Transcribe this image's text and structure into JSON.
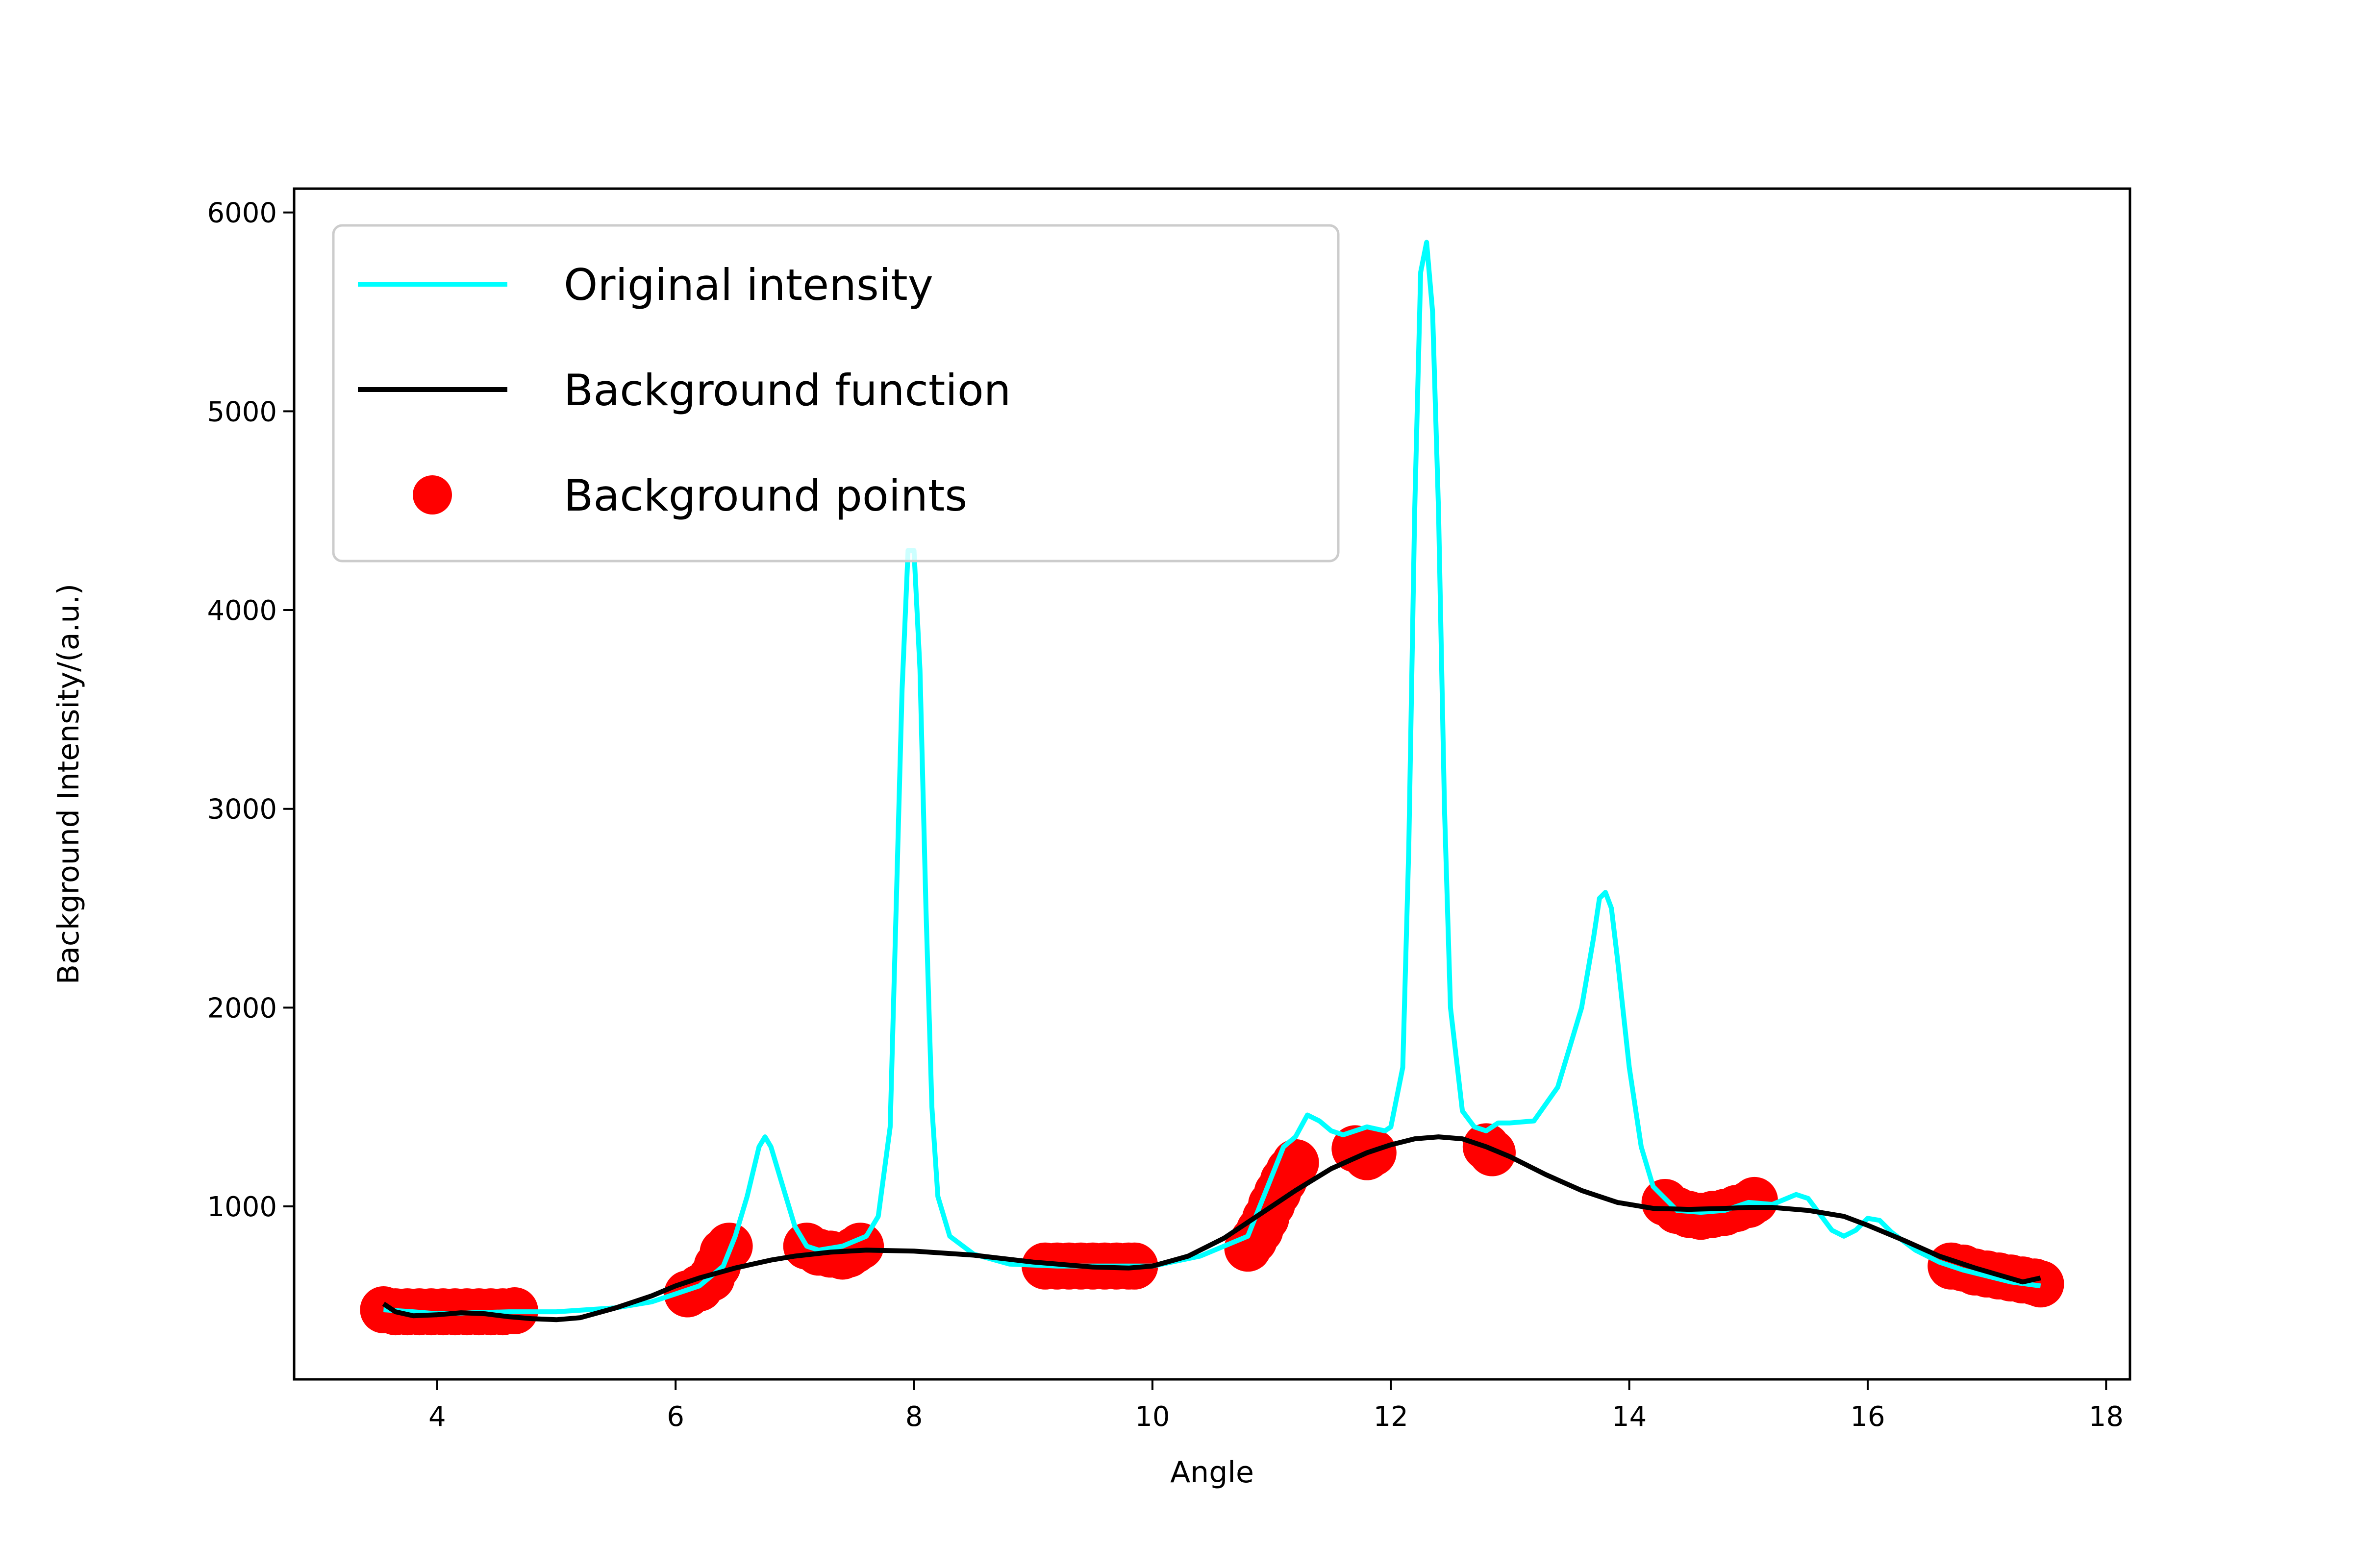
{
  "chart_data": {
    "type": "line",
    "title": "",
    "xlabel": "Angle",
    "ylabel": "Background Intensity/(a.u.)",
    "xlim": [
      2.8,
      18.2
    ],
    "ylim": [
      130,
      6120
    ],
    "xticks": [
      4,
      6,
      8,
      10,
      12,
      14,
      16,
      18
    ],
    "yticks": [
      1000,
      2000,
      3000,
      4000,
      5000,
      6000
    ],
    "grid": false,
    "legend_position": "top-left",
    "colors": {
      "original": "#00ffff",
      "background": "#000000",
      "points": "#ff0000"
    },
    "legend": [
      {
        "label": "Original intensity",
        "kind": "line",
        "color": "#00ffff"
      },
      {
        "label": "Background function",
        "kind": "line",
        "color": "#000000"
      },
      {
        "label": "Background points",
        "kind": "marker",
        "color": "#ff0000"
      }
    ],
    "series": [
      {
        "name": "Original intensity",
        "kind": "line",
        "color": "#00ffff",
        "x": [
          3.55,
          3.8,
          4.0,
          4.3,
          4.6,
          5.0,
          5.5,
          5.8,
          6.0,
          6.2,
          6.4,
          6.5,
          6.6,
          6.7,
          6.75,
          6.8,
          6.9,
          7.0,
          7.1,
          7.2,
          7.4,
          7.6,
          7.7,
          7.8,
          7.85,
          7.9,
          7.95,
          8.0,
          8.05,
          8.1,
          8.15,
          8.2,
          8.3,
          8.5,
          8.8,
          9.2,
          9.6,
          10.0,
          10.4,
          10.8,
          11.0,
          11.1,
          11.2,
          11.3,
          11.4,
          11.5,
          11.6,
          11.8,
          11.95,
          12.0,
          12.1,
          12.15,
          12.2,
          12.25,
          12.3,
          12.35,
          12.4,
          12.45,
          12.5,
          12.6,
          12.7,
          12.8,
          12.9,
          13.0,
          13.2,
          13.4,
          13.6,
          13.7,
          13.75,
          13.8,
          13.85,
          13.9,
          14.0,
          14.1,
          14.2,
          14.4,
          14.6,
          14.8,
          15.0,
          15.2,
          15.4,
          15.5,
          15.6,
          15.7,
          15.8,
          15.9,
          16.0,
          16.1,
          16.2,
          16.4,
          16.6,
          16.8,
          17.0,
          17.2,
          17.45
        ],
        "y": [
          480,
          470,
          460,
          465,
          470,
          470,
          490,
          520,
          560,
          600,
          700,
          850,
          1050,
          1300,
          1350,
          1300,
          1100,
          900,
          800,
          780,
          800,
          850,
          950,
          1400,
          2500,
          3600,
          4300,
          4300,
          3700,
          2500,
          1500,
          1050,
          850,
          760,
          710,
          700,
          700,
          700,
          750,
          850,
          1150,
          1300,
          1350,
          1460,
          1430,
          1380,
          1360,
          1400,
          1380,
          1400,
          1700,
          2800,
          4500,
          5700,
          5850,
          5500,
          4500,
          3000,
          2000,
          1480,
          1400,
          1380,
          1420,
          1420,
          1430,
          1600,
          2000,
          2350,
          2550,
          2580,
          2500,
          2250,
          1700,
          1300,
          1100,
          980,
          970,
          980,
          1020,
          1010,
          1060,
          1040,
          960,
          880,
          850,
          880,
          940,
          930,
          870,
          780,
          720,
          680,
          650,
          620,
          600
        ]
      },
      {
        "name": "Background function",
        "kind": "line",
        "color": "#000000",
        "x": [
          3.55,
          3.65,
          3.8,
          4.0,
          4.2,
          4.4,
          4.6,
          4.8,
          5.0,
          5.2,
          5.5,
          5.8,
          6.0,
          6.2,
          6.5,
          6.8,
          7.0,
          7.3,
          7.6,
          8.0,
          8.5,
          9.0,
          9.5,
          9.8,
          10.0,
          10.3,
          10.6,
          10.9,
          11.2,
          11.5,
          11.8,
          12.0,
          12.2,
          12.4,
          12.6,
          12.8,
          13.0,
          13.3,
          13.6,
          13.9,
          14.2,
          14.5,
          14.8,
          15.0,
          15.2,
          15.5,
          15.8,
          16.0,
          16.3,
          16.6,
          16.9,
          17.1,
          17.3,
          17.45
        ],
        "y": [
          510,
          470,
          450,
          455,
          465,
          460,
          445,
          435,
          430,
          440,
          490,
          550,
          600,
          640,
          690,
          730,
          750,
          770,
          780,
          775,
          755,
          720,
          695,
          690,
          700,
          750,
          840,
          960,
          1080,
          1190,
          1270,
          1310,
          1340,
          1350,
          1340,
          1300,
          1250,
          1160,
          1080,
          1020,
          990,
          985,
          990,
          995,
          995,
          980,
          950,
          905,
          830,
          750,
          690,
          655,
          620,
          640
        ]
      },
      {
        "name": "Background points",
        "kind": "scatter",
        "color": "#ff0000",
        "x": [
          3.55,
          3.65,
          3.75,
          3.85,
          3.95,
          4.05,
          4.15,
          4.25,
          4.35,
          4.45,
          4.55,
          4.65,
          6.1,
          6.2,
          6.3,
          6.35,
          6.4,
          6.45,
          7.1,
          7.2,
          7.3,
          7.4,
          7.45,
          7.5,
          7.55,
          9.1,
          9.2,
          9.3,
          9.4,
          9.5,
          9.6,
          9.7,
          9.8,
          9.85,
          10.8,
          10.85,
          10.9,
          10.95,
          11.0,
          11.05,
          11.1,
          11.15,
          11.2,
          11.7,
          11.8,
          11.85,
          12.8,
          12.85,
          14.3,
          14.4,
          14.5,
          14.6,
          14.7,
          14.8,
          14.9,
          15.0,
          15.05,
          16.7,
          16.8,
          16.9,
          17.0,
          17.1,
          17.2,
          17.3,
          17.4,
          17.45
        ],
        "y": [
          480,
          470,
          470,
          470,
          470,
          470,
          470,
          470,
          470,
          470,
          470,
          475,
          560,
          590,
          640,
          700,
          770,
          800,
          800,
          770,
          760,
          750,
          760,
          780,
          800,
          700,
          700,
          700,
          700,
          700,
          700,
          700,
          700,
          700,
          790,
          830,
          880,
          940,
          1010,
          1070,
          1130,
          1180,
          1220,
          1290,
          1250,
          1270,
          1300,
          1270,
          1020,
          980,
          960,
          950,
          960,
          970,
          990,
          1010,
          1030,
          700,
          690,
          670,
          660,
          650,
          640,
          630,
          620,
          610
        ]
      }
    ]
  }
}
